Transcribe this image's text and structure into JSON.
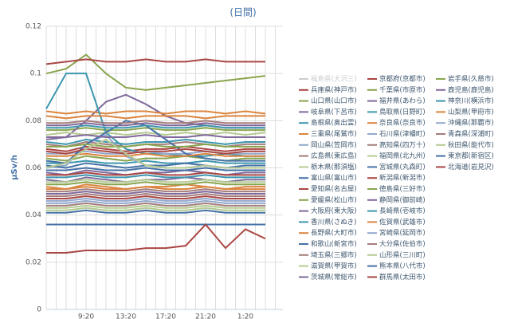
{
  "chart_data": {
    "type": "line",
    "title": "(日間)",
    "y_label": "μSv/h",
    "categories": [
      null,
      null,
      "9:20",
      null,
      "13:20",
      null,
      "17:20",
      null,
      "21:20",
      null,
      "1:20",
      null
    ],
    "ylim": [
      0,
      0.12
    ],
    "yticks": [
      0,
      0.02,
      0.04,
      0.06,
      0.08,
      0.1,
      0.12
    ],
    "grid": true,
    "series": [
      {
        "name": "福島県(大沢三)",
        "visible": false
      },
      {
        "name": "京都府(京都市)",
        "color": "#AA4643",
        "values": [
          0.068,
          0.067,
          0.069,
          0.068,
          0.067,
          0.068,
          0.068,
          0.069,
          0.068,
          0.067,
          0.068,
          0.068
        ]
      },
      {
        "name": "岩手県(久慈市)",
        "color": "#89A54E",
        "values": [
          0.1,
          0.102,
          0.108,
          0.1,
          0.094,
          0.093,
          0.094,
          0.095,
          0.096,
          0.097,
          0.098,
          0.099
        ]
      },
      {
        "name": "兵庫県(神戸市)",
        "color": "#AA4643",
        "values": [
          0.104,
          0.105,
          0.106,
          0.105,
          0.105,
          0.106,
          0.105,
          0.105,
          0.106,
          0.105,
          0.105,
          0.105
        ]
      },
      {
        "name": "千葉県(市原市)",
        "color": "#89A54E",
        "values": [
          0.064,
          0.063,
          0.065,
          0.064,
          0.063,
          0.064,
          0.064,
          0.065,
          0.064,
          0.063,
          0.064,
          0.064
        ]
      },
      {
        "name": "鹿児島(鹿児島)",
        "color": "#80699B",
        "values": [
          0.058,
          0.057,
          0.059,
          0.058,
          0.057,
          0.058,
          0.058,
          0.059,
          0.058,
          0.057,
          0.058,
          0.058
        ]
      },
      {
        "name": "山口県(山口市)",
        "color": "#89A54E",
        "values": [
          0.076,
          0.076,
          0.077,
          0.076,
          0.076,
          0.077,
          0.076,
          0.076,
          0.077,
          0.076,
          0.076,
          0.076
        ]
      },
      {
        "name": "福井県(あわら)",
        "color": "#80699B",
        "values": [
          0.072,
          0.073,
          0.08,
          0.088,
          0.091,
          0.087,
          0.082,
          0.079,
          0.078,
          0.077,
          0.077,
          0.077
        ]
      },
      {
        "name": "神奈川(横浜市)",
        "color": "#3D96AE",
        "values": [
          0.062,
          0.062,
          0.063,
          0.062,
          0.062,
          0.063,
          0.062,
          0.062,
          0.063,
          0.062,
          0.062,
          0.062
        ]
      },
      {
        "name": "岐阜県(下呂市)",
        "color": "#80699B",
        "values": [
          0.055,
          0.054,
          0.056,
          0.055,
          0.054,
          0.055,
          0.055,
          0.056,
          0.055,
          0.054,
          0.055,
          0.055
        ]
      },
      {
        "name": "鳥取県(日野町)",
        "color": "#3D96AE",
        "values": [
          0.071,
          0.07,
          0.072,
          0.071,
          0.07,
          0.071,
          0.071,
          0.072,
          0.071,
          0.07,
          0.071,
          0.071
        ]
      },
      {
        "name": "山梨県(甲府市)",
        "color": "#DB843D",
        "values": [
          0.084,
          0.083,
          0.084,
          0.083,
          0.084,
          0.084,
          0.083,
          0.084,
          0.084,
          0.083,
          0.084,
          0.083
        ]
      },
      {
        "name": "島根県(奥出雲)",
        "color": "#3D96AE",
        "values": [
          0.085,
          0.1,
          0.1,
          0.075,
          0.068,
          0.066,
          0.066,
          0.065,
          0.065,
          0.066,
          0.065,
          0.065
        ]
      },
      {
        "name": "奈良県(奈良市)",
        "color": "#DB843D",
        "values": [
          0.052,
          0.051,
          0.053,
          0.052,
          0.051,
          0.052,
          0.052,
          0.053,
          0.052,
          0.051,
          0.052,
          0.052
        ]
      },
      {
        "name": "沖縄県(那覇市)",
        "color": "#92A8CD",
        "values": [
          0.045,
          0.045,
          0.046,
          0.045,
          0.045,
          0.046,
          0.045,
          0.045,
          0.046,
          0.045,
          0.045,
          0.045
        ]
      },
      {
        "name": "三重県(尾鷲市)",
        "color": "#DB843D",
        "values": [
          0.082,
          0.081,
          0.082,
          0.082,
          0.081,
          0.082,
          0.082,
          0.082,
          0.081,
          0.082,
          0.082,
          0.082
        ]
      },
      {
        "name": "石川県(津幡町)",
        "color": "#92A8CD",
        "values": [
          0.06,
          0.061,
          0.07,
          0.074,
          0.065,
          0.061,
          0.06,
          0.06,
          0.061,
          0.06,
          0.06,
          0.06
        ]
      },
      {
        "name": "青森県(深浦町)",
        "color": "#A47D7C",
        "values": [
          0.05,
          0.05,
          0.051,
          0.05,
          0.05,
          0.051,
          0.05,
          0.05,
          0.051,
          0.05,
          0.05,
          0.05
        ]
      },
      {
        "name": "岡山県(笠岡市)",
        "color": "#92A8CD",
        "values": [
          0.066,
          0.066,
          0.067,
          0.066,
          0.066,
          0.067,
          0.066,
          0.066,
          0.067,
          0.066,
          0.066,
          0.066
        ]
      },
      {
        "name": "高知県(四万十)",
        "color": "#A47D7C",
        "values": [
          0.048,
          0.048,
          0.049,
          0.048,
          0.048,
          0.049,
          0.048,
          0.048,
          0.049,
          0.048,
          0.048,
          0.048
        ]
      },
      {
        "name": "秋田県(能代市)",
        "color": "#B5CA92",
        "values": [
          0.043,
          0.043,
          0.044,
          0.043,
          0.043,
          0.044,
          0.043,
          0.043,
          0.044,
          0.043,
          0.043,
          0.043
        ]
      },
      {
        "name": "広島県(東広島)",
        "color": "#A47D7C",
        "values": [
          0.07,
          0.069,
          0.071,
          0.07,
          0.069,
          0.07,
          0.07,
          0.071,
          0.07,
          0.069,
          0.07,
          0.07
        ]
      },
      {
        "name": "福岡県(北九州)",
        "color": "#B5CA92",
        "values": [
          0.054,
          0.054,
          0.055,
          0.054,
          0.054,
          0.055,
          0.054,
          0.054,
          0.055,
          0.054,
          0.054,
          0.054
        ]
      },
      {
        "name": "東京都(新宿区)",
        "color": "#4572A7",
        "values": [
          0.061,
          0.06,
          0.062,
          0.061,
          0.06,
          0.061,
          0.061,
          0.062,
          0.061,
          0.06,
          0.061,
          0.061
        ]
      },
      {
        "name": "栃木県(那須塩)",
        "color": "#B5CA92",
        "values": [
          0.074,
          0.075,
          0.074,
          0.075,
          0.074,
          0.075,
          0.074,
          0.075,
          0.074,
          0.075,
          0.074,
          0.075
        ]
      },
      {
        "name": "宮城県(丸森町)",
        "color": "#4572A7",
        "values": [
          0.059,
          0.059,
          0.06,
          0.059,
          0.059,
          0.06,
          0.059,
          0.059,
          0.06,
          0.059,
          0.059,
          0.059
        ]
      },
      {
        "name": "北海道(岩見沢)",
        "color": "#AA4643",
        "values": [
          0.047,
          0.047,
          0.048,
          0.047,
          0.047,
          0.048,
          0.047,
          0.047,
          0.048,
          0.047,
          0.047,
          0.047
        ]
      },
      {
        "name": "富山県(富山市)",
        "color": "#4572A7",
        "values": [
          0.063,
          0.062,
          0.07,
          0.075,
          0.08,
          0.078,
          0.072,
          0.066,
          0.064,
          0.063,
          0.063,
          0.063
        ]
      },
      {
        "name": "新潟県(新潟市)",
        "color": "#AA4643",
        "values": [
          0.057,
          0.057,
          0.058,
          0.057,
          0.057,
          0.058,
          0.057,
          0.057,
          0.058,
          0.057,
          0.057,
          0.057
        ]
      },
      {
        "name": "愛知県(名古屋)",
        "color": "#AA4643",
        "values": [
          0.067,
          0.066,
          0.068,
          0.067,
          0.066,
          0.067,
          0.067,
          0.068,
          0.067,
          0.066,
          0.067,
          0.067
        ]
      },
      {
        "name": "徳島県(三好市)",
        "color": "#89A54E",
        "values": [
          0.053,
          0.053,
          0.054,
          0.053,
          0.053,
          0.054,
          0.053,
          0.053,
          0.054,
          0.053,
          0.053,
          0.053
        ]
      },
      {
        "name": "愛媛県(松山市)",
        "color": "#89A54E",
        "values": [
          0.069,
          0.069,
          0.07,
          0.069,
          0.069,
          0.07,
          0.069,
          0.069,
          0.07,
          0.069,
          0.069,
          0.069
        ]
      },
      {
        "name": "静岡県(御前崎)",
        "color": "#80699B",
        "values": [
          0.049,
          0.049,
          0.05,
          0.049,
          0.049,
          0.05,
          0.049,
          0.049,
          0.05,
          0.049,
          0.049,
          0.049
        ]
      },
      {
        "name": "大阪府(東大阪)",
        "color": "#80699B",
        "values": [
          0.073,
          0.073,
          0.074,
          0.073,
          0.073,
          0.074,
          0.073,
          0.073,
          0.074,
          0.073,
          0.073,
          0.073
        ]
      },
      {
        "name": "長崎県(壱岐市)",
        "color": "#3D96AE",
        "values": [
          0.056,
          0.056,
          0.057,
          0.056,
          0.056,
          0.057,
          0.056,
          0.056,
          0.057,
          0.056,
          0.056,
          0.056
        ]
      },
      {
        "name": "香川県(さぬき)",
        "color": "#3D96AE",
        "values": [
          0.077,
          0.077,
          0.078,
          0.077,
          0.077,
          0.078,
          0.077,
          0.077,
          0.078,
          0.077,
          0.077,
          0.077
        ]
      },
      {
        "name": "佐賀県(武雄市)",
        "color": "#DB843D",
        "values": [
          0.051,
          0.051,
          0.052,
          0.051,
          0.051,
          0.052,
          0.051,
          0.051,
          0.052,
          0.051,
          0.051,
          0.051
        ]
      },
      {
        "name": "長野県(大町市)",
        "color": "#DB843D",
        "values": [
          0.065,
          0.065,
          0.066,
          0.065,
          0.065,
          0.066,
          0.065,
          0.065,
          0.066,
          0.065,
          0.065,
          0.065
        ]
      },
      {
        "name": "宮崎県(延岡市)",
        "color": "#92A8CD",
        "values": [
          0.046,
          0.046,
          0.047,
          0.046,
          0.046,
          0.047,
          0.046,
          0.046,
          0.047,
          0.046,
          0.046,
          0.046
        ]
      },
      {
        "name": "和歌山(新宮市)",
        "color": "#4572A7",
        "values": [
          0.036,
          0.036,
          0.036,
          0.036,
          0.036,
          0.036,
          0.036,
          0.036,
          0.036,
          0.036,
          0.036,
          0.036
        ]
      },
      {
        "name": "大分県(佐伯市)",
        "color": "#A47D7C",
        "values": [
          0.044,
          0.044,
          0.045,
          0.044,
          0.044,
          0.045,
          0.044,
          0.044,
          0.045,
          0.044,
          0.044,
          0.044
        ]
      },
      {
        "name": "埼玉県(三郷市)",
        "color": "#A47D7C",
        "values": [
          0.079,
          0.079,
          0.08,
          0.079,
          0.079,
          0.08,
          0.079,
          0.079,
          0.08,
          0.079,
          0.079,
          0.079
        ]
      },
      {
        "name": "山形県(三川町)",
        "color": "#B5CA92",
        "values": [
          0.042,
          0.042,
          0.043,
          0.042,
          0.042,
          0.043,
          0.042,
          0.042,
          0.043,
          0.042,
          0.042,
          0.042
        ]
      },
      {
        "name": "滋賀県(甲賀市)",
        "color": "#B5CA92",
        "values": [
          0.06,
          0.062,
          0.068,
          0.072,
          0.066,
          0.061,
          0.06,
          0.06,
          0.061,
          0.06,
          0.06,
          0.06
        ]
      },
      {
        "name": "熊本県(八代市)",
        "color": "#4572A7",
        "values": [
          0.041,
          0.041,
          0.042,
          0.041,
          0.041,
          0.042,
          0.041,
          0.041,
          0.042,
          0.041,
          0.041,
          0.041
        ]
      },
      {
        "name": "茨城県(常総市)",
        "color": "#80699B",
        "values": [
          0.078,
          0.078,
          0.079,
          0.078,
          0.078,
          0.079,
          0.078,
          0.078,
          0.079,
          0.078,
          0.078,
          0.078
        ]
      },
      {
        "name": "群馬県(太田市)",
        "color": "#AA4643",
        "values": [
          0.024,
          0.024,
          0.025,
          0.025,
          0.025,
          0.026,
          0.026,
          0.027,
          0.036,
          0.026,
          0.034,
          0.03
        ]
      }
    ]
  }
}
